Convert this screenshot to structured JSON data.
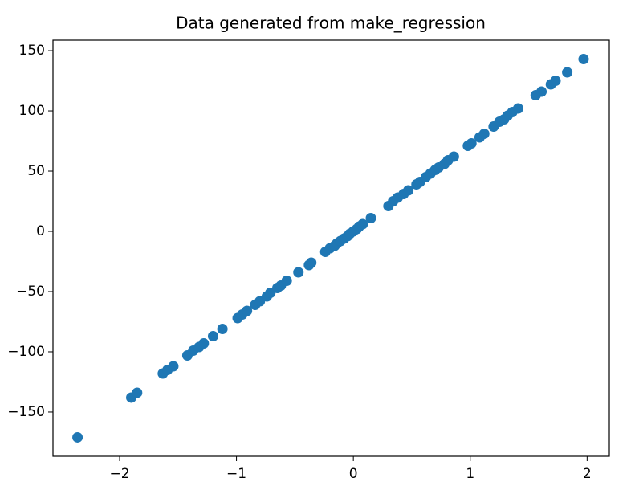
{
  "chart_data": {
    "type": "scatter",
    "title": "Data generated from make_regression",
    "color": "#1f77b4",
    "xlim": [
      -2.57,
      2.19
    ],
    "ylim": [
      -186.7,
      158.7
    ],
    "xticks": [
      {
        "value": -2,
        "label": "−2"
      },
      {
        "value": -1,
        "label": "−1"
      },
      0,
      1,
      2
    ],
    "yticks": [
      {
        "value": -150,
        "label": "−150"
      },
      {
        "value": -100,
        "label": "−100"
      },
      {
        "value": -50,
        "label": "−50"
      },
      0,
      50,
      100,
      150
    ],
    "x": [
      -2.36,
      -1.9,
      -1.85,
      -1.63,
      -1.59,
      -1.54,
      -1.42,
      -1.37,
      -1.32,
      -1.28,
      -1.2,
      -1.12,
      -0.99,
      -0.95,
      -0.91,
      -0.84,
      -0.8,
      -0.74,
      -0.71,
      -0.65,
      -0.62,
      -0.57,
      -0.47,
      -0.38,
      -0.36,
      -0.24,
      -0.2,
      -0.16,
      -0.14,
      -0.11,
      -0.08,
      -0.05,
      -0.03,
      0.0,
      0.03,
      0.05,
      0.08,
      0.15,
      0.3,
      0.34,
      0.38,
      0.43,
      0.47,
      0.54,
      0.57,
      0.62,
      0.66,
      0.7,
      0.73,
      0.78,
      0.81,
      0.86,
      0.98,
      1.01,
      1.08,
      1.12,
      1.2,
      1.25,
      1.29,
      1.32,
      1.36,
      1.41,
      1.56,
      1.61,
      1.69,
      1.73,
      1.83,
      1.97
    ],
    "values": [
      -171,
      -138,
      -134,
      -118,
      -115,
      -112,
      -103,
      -99,
      -96,
      -93,
      -87,
      -81,
      -72,
      -69,
      -66,
      -61,
      -58,
      -54,
      -51,
      -47,
      -45,
      -41,
      -34,
      -28,
      -26,
      -17,
      -14,
      -12,
      -10,
      -8,
      -6,
      -4,
      -2,
      0,
      2,
      4,
      6,
      11,
      21,
      25,
      28,
      31,
      34,
      39,
      41,
      45,
      48,
      51,
      53,
      56,
      59,
      62,
      71,
      73,
      78,
      81,
      87,
      91,
      93,
      96,
      99,
      102,
      113,
      116,
      122,
      125,
      132,
      143
    ]
  }
}
